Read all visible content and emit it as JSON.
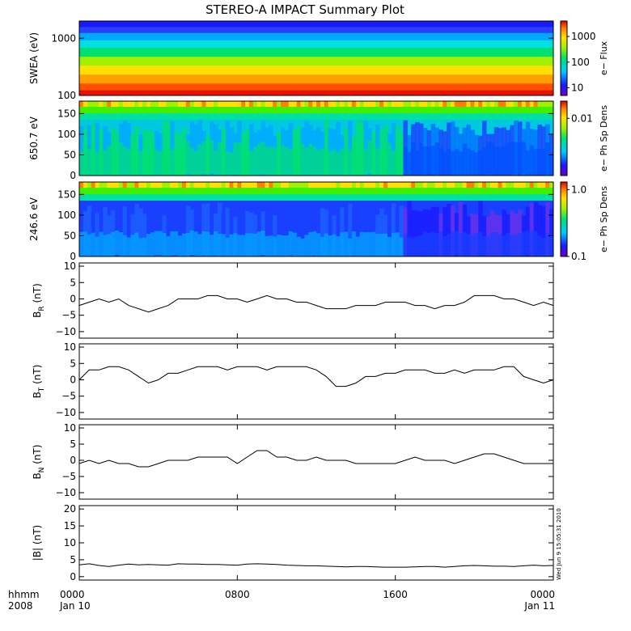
{
  "chart_data": {
    "type": "heatmap",
    "title": "STEREO-A IMPACT Summary Plot",
    "time_axis": {
      "label_top": "hhmm",
      "label_bottom": "2008",
      "ticks": [
        {
          "hour": 0,
          "hhmm": "0000",
          "date": "Jan 10"
        },
        {
          "hour": 8,
          "hhmm": "0800",
          "date": ""
        },
        {
          "hour": 16,
          "hhmm": "1600",
          "date": ""
        },
        {
          "hour": 24,
          "hhmm": "0000",
          "date": "Jan 11"
        }
      ],
      "range_hours": [
        0,
        24
      ]
    },
    "timestamp": "Wed Jun 9 15:05:31 2010",
    "spectrograms": [
      {
        "id": "swea",
        "ylabel": "SWEA (eV)",
        "yscale": "log",
        "ylim": [
          100,
          2000
        ],
        "yticks": [
          100,
          1000
        ],
        "ytick_labels": [
          "100",
          "1000"
        ],
        "colorbar_label": "e− Flux",
        "colorbar_scale": "log",
        "colorbar_range": [
          5,
          4000
        ],
        "colorbar_ticks": [
          10,
          100,
          1000
        ],
        "colorbar_tick_labels": [
          "10",
          "100",
          "1000"
        ]
      },
      {
        "id": "pad650",
        "ylabel": "650.7 eV",
        "yscale": "linear",
        "ylim": [
          0,
          180
        ],
        "yticks": [
          0,
          50,
          100,
          150
        ],
        "ytick_labels": [
          "0",
          "50",
          "100",
          "150"
        ],
        "colorbar_label": "e− Ph Sp Dens",
        "colorbar_scale": "log",
        "colorbar_range": [
          0.001,
          0.02
        ],
        "colorbar_ticks": [
          0.01
        ],
        "colorbar_tick_labels": [
          "0.01"
        ]
      },
      {
        "id": "pad246",
        "ylabel": "246.6 eV",
        "yscale": "linear",
        "ylim": [
          0,
          180
        ],
        "yticks": [
          0,
          50,
          100,
          150
        ],
        "ytick_labels": [
          "0",
          "50",
          "100",
          "150"
        ],
        "colorbar_label": "e− Ph Sp Dens",
        "colorbar_scale": "log",
        "colorbar_range": [
          0.1,
          1.3
        ],
        "colorbar_ticks": [
          0.1,
          1.0
        ],
        "colorbar_tick_labels": [
          "0.1",
          "1.0"
        ]
      }
    ],
    "line_panels": [
      {
        "id": "br",
        "ylabel_main": "B",
        "ylabel_sub": "R",
        "ylabel_unit": "(nT)",
        "ylim": [
          -12,
          11
        ],
        "yticks": [
          -10,
          -5,
          0,
          5,
          10
        ],
        "ytick_labels": [
          "−10",
          "−5",
          "0",
          "5",
          "10"
        ],
        "x": [
          0,
          0.5,
          1,
          1.5,
          2,
          2.5,
          3,
          3.5,
          4,
          4.5,
          5,
          5.5,
          6,
          6.5,
          7,
          7.5,
          8,
          8.5,
          9,
          9.5,
          10,
          10.5,
          11,
          11.5,
          12,
          12.5,
          13,
          13.5,
          14,
          14.5,
          15,
          15.5,
          16,
          16.5,
          17,
          17.5,
          18,
          18.5,
          19,
          19.5,
          20,
          20.5,
          21,
          21.5,
          22,
          22.5,
          23,
          23.5,
          24
        ],
        "values": [
          -2,
          -1,
          0,
          -1,
          0,
          -2,
          -3,
          -4,
          -3,
          -2,
          0,
          0,
          0,
          1,
          1,
          0,
          0,
          -1,
          0,
          1,
          0,
          0,
          -1,
          -1,
          -2,
          -3,
          -3,
          -3,
          -2,
          -2,
          -2,
          -1,
          -1,
          -1,
          -2,
          -2,
          -3,
          -2,
          -2,
          -1,
          1,
          1,
          1,
          0,
          0,
          -1,
          -2,
          -1,
          -2
        ]
      },
      {
        "id": "bt",
        "ylabel_main": "B",
        "ylabel_sub": "T",
        "ylabel_unit": "(nT)",
        "ylim": [
          -12,
          11
        ],
        "yticks": [
          -10,
          -5,
          0,
          5,
          10
        ],
        "ytick_labels": [
          "−10",
          "−5",
          "0",
          "5",
          "10"
        ],
        "x": [
          0,
          0.5,
          1,
          1.5,
          2,
          2.5,
          3,
          3.5,
          4,
          4.5,
          5,
          5.5,
          6,
          6.5,
          7,
          7.5,
          8,
          8.5,
          9,
          9.5,
          10,
          10.5,
          11,
          11.5,
          12,
          12.5,
          13,
          13.5,
          14,
          14.5,
          15,
          15.5,
          16,
          16.5,
          17,
          17.5,
          18,
          18.5,
          19,
          19.5,
          20,
          20.5,
          21,
          21.5,
          22,
          22.5,
          23,
          23.5,
          24
        ],
        "values": [
          0,
          3,
          3,
          4,
          4,
          3,
          1,
          -1,
          0,
          2,
          2,
          3,
          4,
          4,
          4,
          3,
          4,
          4,
          4,
          3,
          4,
          4,
          4,
          4,
          3,
          1,
          -2,
          -2,
          -1,
          1,
          1,
          2,
          2,
          3,
          3,
          3,
          2,
          2,
          3,
          2,
          3,
          3,
          3,
          4,
          4,
          1,
          0,
          -1,
          0
        ]
      },
      {
        "id": "bn",
        "ylabel_main": "B",
        "ylabel_sub": "N",
        "ylabel_unit": "(nT)",
        "ylim": [
          -12,
          11
        ],
        "yticks": [
          -10,
          -5,
          0,
          5,
          10
        ],
        "ytick_labels": [
          "−10",
          "−5",
          "0",
          "5",
          "10"
        ],
        "x": [
          0,
          0.5,
          1,
          1.5,
          2,
          2.5,
          3,
          3.5,
          4,
          4.5,
          5,
          5.5,
          6,
          6.5,
          7,
          7.5,
          8,
          8.5,
          9,
          9.5,
          10,
          10.5,
          11,
          11.5,
          12,
          12.5,
          13,
          13.5,
          14,
          14.5,
          15,
          15.5,
          16,
          16.5,
          17,
          17.5,
          18,
          18.5,
          19,
          19.5,
          20,
          20.5,
          21,
          21.5,
          22,
          22.5,
          23,
          23.5,
          24
        ],
        "values": [
          -1,
          0,
          -1,
          0,
          -1,
          -1,
          -2,
          -2,
          -1,
          0,
          0,
          0,
          1,
          1,
          1,
          1,
          -1,
          1,
          3,
          3,
          1,
          1,
          0,
          0,
          1,
          0,
          0,
          0,
          -1,
          -1,
          -1,
          -1,
          -1,
          0,
          1,
          0,
          0,
          0,
          -1,
          0,
          1,
          2,
          2,
          1,
          0,
          -1,
          -1,
          -1,
          -1
        ]
      },
      {
        "id": "bmag",
        "ylabel_main": "|B|",
        "ylabel_sub": "",
        "ylabel_unit": "(nT)",
        "ylim": [
          -1,
          21
        ],
        "yticks": [
          0,
          5,
          10,
          15,
          20
        ],
        "ytick_labels": [
          "0",
          "5",
          "10",
          "15",
          "20"
        ],
        "x": [
          0,
          0.5,
          1,
          1.5,
          2,
          2.5,
          3,
          3.5,
          4,
          4.5,
          5,
          5.5,
          6,
          6.5,
          7,
          7.5,
          8,
          8.5,
          9,
          9.5,
          10,
          10.5,
          11,
          11.5,
          12,
          12.5,
          13,
          13.5,
          14,
          14.5,
          15,
          15.5,
          16,
          16.5,
          17,
          17.5,
          18,
          18.5,
          19,
          19.5,
          20,
          20.5,
          21,
          21.5,
          22,
          22.5,
          23,
          23.5,
          24
        ],
        "values": [
          3.5,
          3.8,
          3.3,
          3.0,
          3.4,
          3.7,
          3.5,
          3.6,
          3.5,
          3.4,
          3.8,
          3.7,
          3.7,
          3.6,
          3.6,
          3.5,
          3.4,
          3.7,
          3.8,
          3.7,
          3.6,
          3.4,
          3.3,
          3.2,
          3.2,
          3.1,
          3.0,
          2.9,
          3.0,
          3.0,
          2.9,
          2.8,
          2.8,
          2.8,
          2.9,
          3.0,
          3.0,
          2.8,
          3.0,
          3.2,
          3.3,
          3.2,
          3.1,
          3.1,
          3.0,
          3.2,
          3.4,
          3.2,
          3.3
        ]
      }
    ]
  }
}
